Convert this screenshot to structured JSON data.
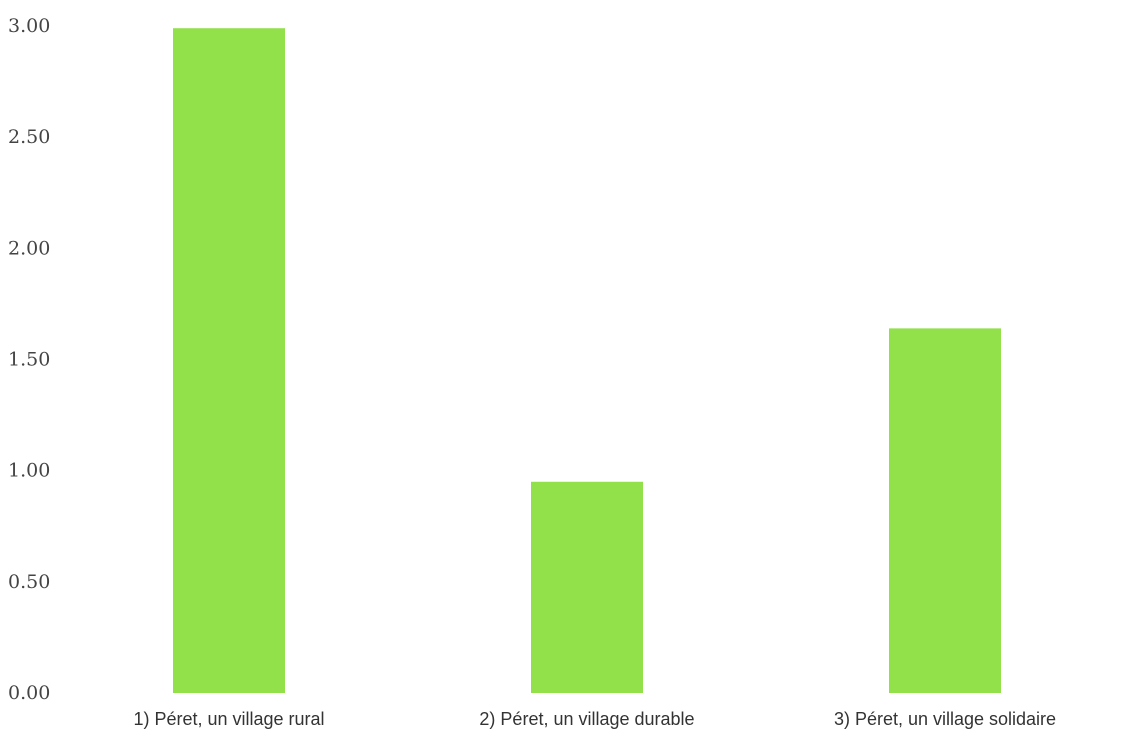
{
  "chart_data": {
    "type": "bar",
    "categories": [
      "1) Péret, un village rural",
      "2) Péret, un village durable",
      "3) Péret, un village solidaire"
    ],
    "values": [
      2.99,
      0.95,
      1.64
    ],
    "yticks": [
      "0.00",
      "0.50",
      "1.00",
      "1.50",
      "2.00",
      "2.50",
      "3.00"
    ],
    "ylim": [
      0,
      3.0
    ],
    "bar_color": "#92e04a",
    "grid": false,
    "legend": false
  }
}
